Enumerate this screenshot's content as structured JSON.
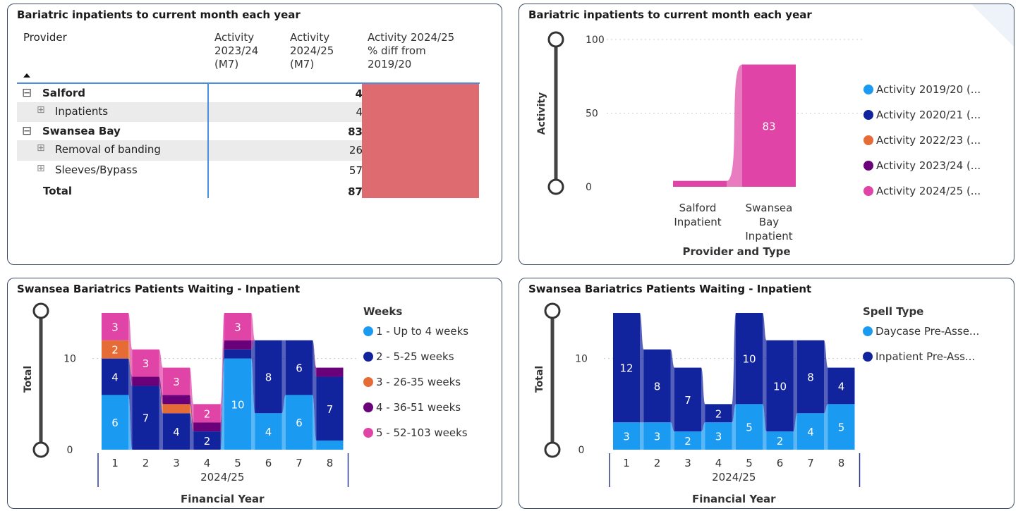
{
  "panels": {
    "table": {
      "title": "Bariatric inpatients to current month each year"
    },
    "bar": {
      "title": "Bariatric inpatients to current month each year"
    },
    "weeks": {
      "title": "Swansea Bariatrics Patients Waiting - Inpatient"
    },
    "spell": {
      "title": "Swansea Bariatrics Patients Waiting - Inpatient"
    }
  },
  "table": {
    "headers": {
      "provider": "Provider",
      "col1": [
        "Activity",
        "2023/24",
        "(M7)"
      ],
      "col2": [
        "Activity",
        "2024/25",
        "(M7)"
      ],
      "col3": [
        "Activity 2024/25",
        "% diff from",
        "2019/20"
      ]
    },
    "sort_icon": "sort-up-icon",
    "rows": [
      {
        "label": "Salford",
        "level": 0,
        "bold": true,
        "expand": "⊟",
        "col1": "",
        "col2": "4",
        "shaded": false
      },
      {
        "label": "Inpatients",
        "level": 1,
        "bold": false,
        "expand": "⊞",
        "col1": "",
        "col2": "4",
        "shaded": true
      },
      {
        "label": "Swansea Bay",
        "level": 0,
        "bold": true,
        "expand": "⊟",
        "col1": "",
        "col2": "83",
        "shaded": false
      },
      {
        "label": "Removal of banding",
        "level": 1,
        "bold": false,
        "expand": "⊞",
        "col1": "",
        "col2": "26",
        "shaded": true
      },
      {
        "label": "Sleeves/Bypass",
        "level": 1,
        "bold": false,
        "expand": "⊞",
        "col1": "",
        "col2": "57",
        "shaded": false
      },
      {
        "label": "Total",
        "level": 0,
        "bold": true,
        "expand": "",
        "col1": "",
        "col2": "87",
        "shaded": false
      }
    ],
    "diff_fill_color": "#dd6b70"
  },
  "chart_data": [
    {
      "type": "bar",
      "title": "Bariatric inpatients to current month each year",
      "xlabel": "Provider and Type",
      "ylabel": "Activity",
      "ylim": [
        0,
        100
      ],
      "yticks": [
        0,
        50,
        100
      ],
      "categories": [
        [
          "Salford",
          "Inpatient"
        ],
        [
          "Swansea",
          "Bay",
          "Inpatient"
        ]
      ],
      "series": [
        {
          "name": "Activity 2019/20 (...",
          "color": "#1a9af0",
          "values": [
            null,
            null
          ]
        },
        {
          "name": "Activity 2020/21 (...",
          "color": "#12239e",
          "values": [
            null,
            null
          ]
        },
        {
          "name": "Activity 2022/23 (...",
          "color": "#e66c37",
          "values": [
            null,
            null
          ]
        },
        {
          "name": "Activity 2023/24 (...",
          "color": "#6b007b",
          "values": [
            null,
            null
          ]
        },
        {
          "name": "Activity 2024/25 (...",
          "color": "#e044a7",
          "values": [
            4,
            83
          ]
        }
      ],
      "data_labels": [
        "",
        "83"
      ],
      "legend_position": "right"
    },
    {
      "type": "bar",
      "stacked": true,
      "title": "Swansea Bariatrics Patients Waiting - Inpatient",
      "xlabel": "Financial Year",
      "x_group_label": "2024/25",
      "ylabel": "Total",
      "ylim": [
        0,
        15
      ],
      "yticks": [
        0,
        10
      ],
      "categories": [
        "1",
        "2",
        "3",
        "4",
        "5",
        "6",
        "7",
        "8"
      ],
      "legend_title": "Weeks",
      "legend_position": "right",
      "series": [
        {
          "name": "1 - Up to 4 weeks",
          "color": "#1a9af0",
          "values": [
            6,
            0,
            0,
            0,
            10,
            4,
            6,
            1
          ]
        },
        {
          "name": "2 - 5-25 weeks",
          "color": "#12239e",
          "values": [
            4,
            7,
            4,
            2,
            1,
            8,
            6,
            7
          ]
        },
        {
          "name": "3 - 26-35 weeks",
          "color": "#e66c37",
          "values": [
            2,
            0,
            1,
            0,
            0,
            0,
            0,
            0
          ]
        },
        {
          "name": "4 - 36-51 weeks",
          "color": "#6b007b",
          "values": [
            0,
            1,
            1,
            1,
            1,
            0,
            0,
            1
          ]
        },
        {
          "name": "5 - 52-103 weeks",
          "color": "#e044a7",
          "values": [
            3,
            3,
            3,
            2,
            3,
            0,
            0,
            0
          ]
        }
      ]
    },
    {
      "type": "bar",
      "stacked": true,
      "title": "Swansea Bariatrics Patients Waiting - Inpatient",
      "xlabel": "Financial Year",
      "x_group_label": "2024/25",
      "ylabel": "Total",
      "ylim": [
        0,
        15
      ],
      "yticks": [
        0,
        10
      ],
      "categories": [
        "1",
        "2",
        "3",
        "4",
        "5",
        "6",
        "7",
        "8"
      ],
      "legend_title": "Spell Type",
      "legend_position": "right",
      "series": [
        {
          "name": "Daycase Pre-Asse...",
          "color": "#1a9af0",
          "values": [
            3,
            3,
            2,
            3,
            5,
            2,
            4,
            5
          ]
        },
        {
          "name": "Inpatient Pre-Ass...",
          "color": "#12239e",
          "values": [
            12,
            8,
            7,
            2,
            10,
            10,
            8,
            4
          ]
        }
      ]
    }
  ]
}
